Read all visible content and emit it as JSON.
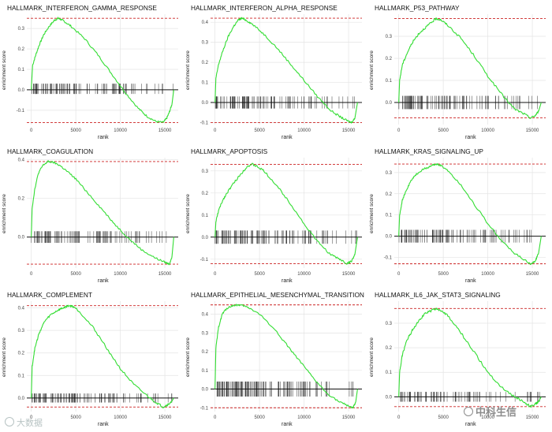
{
  "colors": {
    "curve": "#33dd33",
    "dashed": "#cc2222",
    "ticks": "#222222",
    "grid": "#e4e4e4"
  },
  "watermarks": {
    "left": "大数据",
    "right": "中科生信"
  },
  "chart_data": [
    {
      "type": "line",
      "title": "HALLMARK_INTERFERON_GAMMA_RESPONSE",
      "xlabel": "rank",
      "ylabel": "enrichment score",
      "xlim": [
        -500,
        16500
      ],
      "ylim": [
        -0.17,
        0.37
      ],
      "xticks": [
        0,
        5000,
        10000,
        15000
      ],
      "yticks": [
        -0.1,
        0.0,
        0.1,
        0.2,
        0.3
      ],
      "max_es": 0.35,
      "min_es": -0.16,
      "series": [
        {
          "x": [
            0,
            150,
            500,
            900,
            1400,
            2000,
            2600,
            3000,
            3300,
            3700,
            4500,
            6000,
            7500,
            9000,
            10500,
            12000,
            13000,
            14000,
            14800,
            15200,
            15500,
            15800,
            16000
          ],
          "y": [
            0.0,
            0.12,
            0.17,
            0.22,
            0.27,
            0.31,
            0.34,
            0.35,
            0.345,
            0.335,
            0.31,
            0.25,
            0.17,
            0.08,
            -0.01,
            -0.09,
            -0.13,
            -0.155,
            -0.16,
            -0.14,
            -0.11,
            -0.07,
            0.0
          ]
        }
      ],
      "ticks_band": [
        -0.02,
        0.03
      ],
      "tick_density": [
        60,
        30,
        12
      ]
    },
    {
      "type": "line",
      "title": "HALLMARK_INTERFERON_ALPHA_RESPONSE",
      "xlabel": "rank",
      "ylabel": "enrichment score",
      "xlim": [
        -500,
        16500
      ],
      "ylim": [
        -0.11,
        0.44
      ],
      "xticks": [
        0,
        5000,
        10000,
        15000
      ],
      "yticks": [
        -0.1,
        0.0,
        0.1,
        0.2,
        0.3,
        0.4
      ],
      "max_es": 0.42,
      "min_es": -0.1,
      "series": [
        {
          "x": [
            0,
            100,
            400,
            900,
            1500,
            2100,
            2600,
            3000,
            3500,
            4200,
            5500,
            7000,
            8500,
            10000,
            11500,
            13000,
            14000,
            14800,
            15300,
            15700,
            16000
          ],
          "y": [
            0.0,
            0.12,
            0.19,
            0.26,
            0.33,
            0.38,
            0.41,
            0.42,
            0.41,
            0.39,
            0.34,
            0.27,
            0.19,
            0.11,
            0.03,
            -0.04,
            -0.07,
            -0.09,
            -0.1,
            -0.08,
            0.0
          ]
        }
      ],
      "ticks_band": [
        -0.03,
        0.03
      ],
      "tick_density": [
        55,
        30,
        12
      ]
    },
    {
      "type": "line",
      "title": "HALLMARK_P53_PATHWAY",
      "xlabel": "rank",
      "ylabel": "enrichment score",
      "xlim": [
        -500,
        16500
      ],
      "ylim": [
        -0.1,
        0.4
      ],
      "xticks": [
        0,
        5000,
        10000,
        15000
      ],
      "yticks": [
        0.0,
        0.1,
        0.2,
        0.3
      ],
      "max_es": 0.38,
      "min_es": -0.07,
      "series": [
        {
          "x": [
            0,
            100,
            400,
            900,
            1500,
            2200,
            3000,
            3600,
            4200,
            4700,
            5500,
            7000,
            8500,
            10000,
            11500,
            13000,
            14000,
            14800,
            15300,
            15700,
            16000
          ],
          "y": [
            0.0,
            0.1,
            0.17,
            0.22,
            0.27,
            0.31,
            0.34,
            0.36,
            0.38,
            0.375,
            0.35,
            0.29,
            0.21,
            0.12,
            0.04,
            -0.03,
            -0.05,
            -0.07,
            -0.06,
            -0.04,
            0.0
          ]
        }
      ],
      "ticks_band": [
        -0.03,
        0.03
      ],
      "tick_density": [
        55,
        30,
        14
      ]
    },
    {
      "type": "line",
      "title": "HALLMARK_COAGULATION",
      "xlabel": "rank",
      "ylabel": "enrichment score",
      "xlim": [
        -500,
        16500
      ],
      "ylim": [
        -0.16,
        0.41
      ],
      "xticks": [
        0,
        5000,
        10000,
        15000
      ],
      "yticks": [
        0.0,
        0.2,
        0.4
      ],
      "max_es": 0.39,
      "min_es": -0.14,
      "series": [
        {
          "x": [
            0,
            100,
            400,
            800,
            1300,
            1900,
            2500,
            3200,
            4000,
            5000,
            6500,
            8000,
            9500,
            11000,
            12500,
            14000,
            15000,
            15500,
            15800,
            16000
          ],
          "y": [
            0.0,
            0.15,
            0.25,
            0.33,
            0.37,
            0.39,
            0.385,
            0.37,
            0.34,
            0.3,
            0.22,
            0.14,
            0.06,
            -0.01,
            -0.07,
            -0.11,
            -0.13,
            -0.14,
            -0.1,
            0.0
          ]
        }
      ],
      "ticks_band": [
        -0.03,
        0.03
      ],
      "tick_density": [
        50,
        30,
        14
      ]
    },
    {
      "type": "line",
      "title": "HALLMARK_APOPTOSIS",
      "xlabel": "rank",
      "ylabel": "enrichment score",
      "xlim": [
        -500,
        16500
      ],
      "ylim": [
        -0.14,
        0.36
      ],
      "xticks": [
        0,
        5000,
        10000,
        15000
      ],
      "yticks": [
        -0.1,
        0.0,
        0.1,
        0.2,
        0.3
      ],
      "max_es": 0.33,
      "min_es": -0.12,
      "series": [
        {
          "x": [
            0,
            100,
            400,
            900,
            1500,
            2200,
            3000,
            3600,
            4200,
            4700,
            5500,
            7000,
            8500,
            10000,
            11500,
            13000,
            14000,
            14800,
            15300,
            15700,
            16000
          ],
          "y": [
            0.0,
            0.07,
            0.12,
            0.17,
            0.21,
            0.25,
            0.29,
            0.32,
            0.33,
            0.32,
            0.3,
            0.23,
            0.15,
            0.06,
            -0.02,
            -0.08,
            -0.1,
            -0.12,
            -0.11,
            -0.08,
            0.0
          ]
        }
      ],
      "ticks_band": [
        -0.03,
        0.03
      ],
      "tick_density": [
        55,
        32,
        14
      ]
    },
    {
      "type": "line",
      "title": "HALLMARK_KRAS_SIGNALING_UP",
      "xlabel": "rank",
      "ylabel": "enrichment score",
      "xlim": [
        -500,
        16500
      ],
      "ylim": [
        -0.15,
        0.37
      ],
      "xticks": [
        0,
        5000,
        10000,
        15000
      ],
      "yticks": [
        -0.1,
        0.0,
        0.1,
        0.2,
        0.3
      ],
      "max_es": 0.34,
      "min_es": -0.13,
      "series": [
        {
          "x": [
            0,
            100,
            400,
            900,
            1500,
            2200,
            3000,
            3600,
            4200,
            4700,
            5500,
            7000,
            8500,
            10000,
            11500,
            13000,
            14000,
            14800,
            15300,
            15700,
            16000
          ],
          "y": [
            0.0,
            0.1,
            0.17,
            0.22,
            0.27,
            0.3,
            0.32,
            0.33,
            0.34,
            0.335,
            0.31,
            0.24,
            0.15,
            0.06,
            -0.02,
            -0.08,
            -0.11,
            -0.13,
            -0.12,
            -0.08,
            0.0
          ]
        }
      ],
      "ticks_band": [
        -0.03,
        0.03
      ],
      "tick_density": [
        55,
        30,
        14
      ]
    },
    {
      "type": "line",
      "title": "HALLMARK_COMPLEMENT",
      "xlabel": "rank",
      "ylabel": "enrichment score",
      "xlim": [
        -500,
        16500
      ],
      "ylim": [
        -0.06,
        0.43
      ],
      "xticks": [
        0,
        5000,
        10000,
        15000
      ],
      "yticks": [
        0.0,
        0.1,
        0.2,
        0.3,
        0.4
      ],
      "max_es": 0.41,
      "min_es": -0.04,
      "series": [
        {
          "x": [
            0,
            100,
            400,
            900,
            1500,
            2200,
            3000,
            3600,
            4200,
            4800,
            5500,
            7000,
            8500,
            10000,
            11500,
            13000,
            14000,
            14800,
            15300,
            15700,
            16000
          ],
          "y": [
            0.0,
            0.14,
            0.22,
            0.29,
            0.34,
            0.37,
            0.39,
            0.4,
            0.41,
            0.405,
            0.38,
            0.31,
            0.22,
            0.13,
            0.06,
            0.01,
            -0.02,
            -0.04,
            -0.03,
            -0.02,
            0.0
          ]
        }
      ],
      "ticks_band": [
        -0.02,
        0.02
      ],
      "tick_density": [
        55,
        30,
        14
      ]
    },
    {
      "type": "line",
      "title": "HALLMARK_EPITHELIAL_MESENCHYMAL_TRANSITION",
      "xlabel": "rank",
      "ylabel": "enrichment score",
      "xlim": [
        -500,
        16500
      ],
      "ylim": [
        -0.12,
        0.47
      ],
      "xticks": [
        0,
        5000,
        10000,
        15000
      ],
      "yticks": [
        -0.1,
        0.0,
        0.1,
        0.2,
        0.3,
        0.4
      ],
      "max_es": 0.45,
      "min_es": -0.1,
      "series": [
        {
          "x": [
            0,
            100,
            400,
            800,
            1300,
            1900,
            2600,
            3200,
            4000,
            5000,
            6500,
            8000,
            9500,
            11000,
            12500,
            14000,
            15000,
            15500,
            15800,
            16000
          ],
          "y": [
            0.0,
            0.22,
            0.33,
            0.4,
            0.43,
            0.445,
            0.45,
            0.445,
            0.43,
            0.4,
            0.33,
            0.24,
            0.15,
            0.06,
            -0.02,
            -0.07,
            -0.09,
            -0.1,
            -0.07,
            0.0
          ]
        }
      ],
      "ticks_band": [
        -0.04,
        0.04
      ],
      "tick_density": [
        80,
        35,
        12
      ]
    },
    {
      "type": "line",
      "title": "HALLMARK_IL6_JAK_STAT3_SIGNALING",
      "xlabel": "rank",
      "ylabel": "enrichment score",
      "xlim": [
        -500,
        16500
      ],
      "ylim": [
        -0.06,
        0.39
      ],
      "xticks": [
        0,
        5000,
        10000,
        15000
      ],
      "yticks": [
        0.0,
        0.1,
        0.2,
        0.3
      ],
      "max_es": 0.36,
      "min_es": -0.04,
      "series": [
        {
          "x": [
            0,
            100,
            400,
            900,
            1500,
            2200,
            3000,
            3600,
            4200,
            4800,
            5500,
            7000,
            8500,
            10000,
            11500,
            13000,
            14000,
            14800,
            15300,
            15700,
            16000
          ],
          "y": [
            0.0,
            0.1,
            0.17,
            0.23,
            0.27,
            0.31,
            0.34,
            0.35,
            0.36,
            0.35,
            0.33,
            0.26,
            0.18,
            0.1,
            0.04,
            0.0,
            -0.02,
            -0.04,
            -0.03,
            -0.02,
            0.0
          ]
        }
      ],
      "ticks_band": [
        -0.02,
        0.02
      ],
      "tick_density": [
        45,
        25,
        12
      ]
    }
  ]
}
